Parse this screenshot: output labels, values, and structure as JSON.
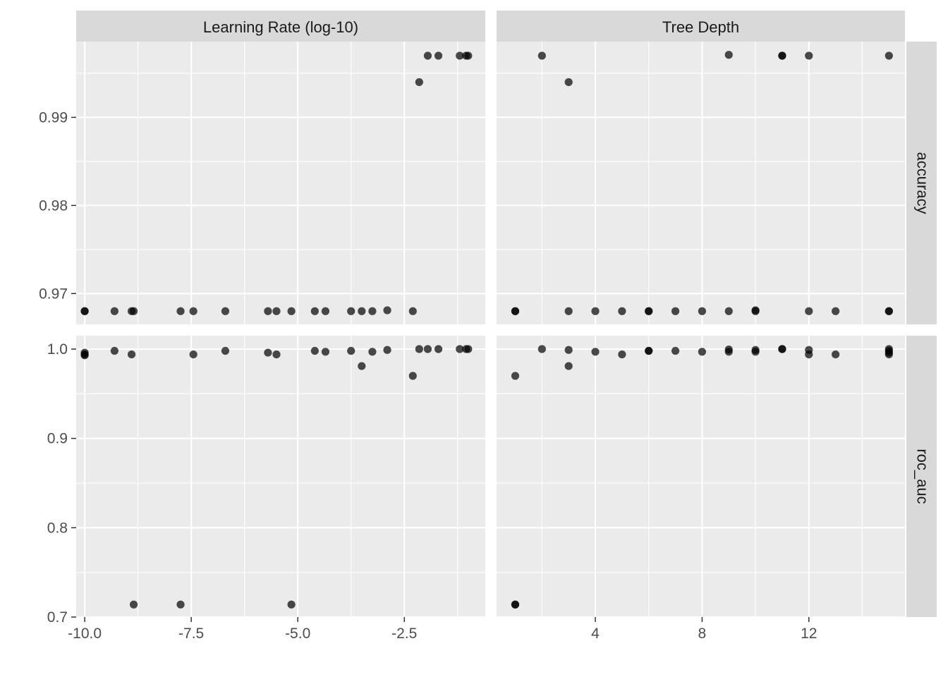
{
  "chart_data": {
    "type": "scatter",
    "facet_columns": [
      "Learning Rate (log-10)",
      "Tree Depth"
    ],
    "facet_rows": [
      "accuracy",
      "roc_auc"
    ],
    "grid": true,
    "x_axes": [
      {
        "range": [
          -10.2,
          -0.6
        ],
        "ticks": [
          -10.0,
          -7.5,
          -5.0,
          -2.5
        ],
        "tick_labels": [
          "-10.0",
          "-7.5",
          "-5.0",
          "-2.5"
        ]
      },
      {
        "range": [
          0.3,
          15.6
        ],
        "ticks": [
          4,
          8,
          12
        ],
        "tick_labels": [
          "4",
          "8",
          "12"
        ]
      }
    ],
    "y_axes": [
      {
        "range": [
          0.9665,
          0.9986
        ],
        "ticks": [
          0.97,
          0.98,
          0.99
        ],
        "tick_labels": [
          "0.97",
          "0.98",
          "0.99"
        ]
      },
      {
        "range": [
          0.7,
          1.015
        ],
        "ticks": [
          0.7,
          0.8,
          0.9,
          1.0
        ],
        "tick_labels": [
          "0.7",
          "0.8",
          "0.9",
          "1.0"
        ]
      }
    ],
    "panels": [
      {
        "col": 0,
        "row": 0,
        "points": [
          {
            "x": -10.0,
            "y": 0.968
          },
          {
            "x": -10.0,
            "y": 0.968
          },
          {
            "x": -9.3,
            "y": 0.968
          },
          {
            "x": -8.9,
            "y": 0.968
          },
          {
            "x": -8.85,
            "y": 0.968
          },
          {
            "x": -7.75,
            "y": 0.968
          },
          {
            "x": -7.45,
            "y": 0.968
          },
          {
            "x": -6.7,
            "y": 0.968
          },
          {
            "x": -5.7,
            "y": 0.968
          },
          {
            "x": -5.5,
            "y": 0.968
          },
          {
            "x": -5.15,
            "y": 0.968
          },
          {
            "x": -4.6,
            "y": 0.968
          },
          {
            "x": -4.35,
            "y": 0.968
          },
          {
            "x": -3.75,
            "y": 0.968
          },
          {
            "x": -3.5,
            "y": 0.968
          },
          {
            "x": -3.25,
            "y": 0.968
          },
          {
            "x": -2.9,
            "y": 0.9681
          },
          {
            "x": -2.3,
            "y": 0.968
          },
          {
            "x": -2.15,
            "y": 0.994
          },
          {
            "x": -1.95,
            "y": 0.997
          },
          {
            "x": -1.7,
            "y": 0.997
          },
          {
            "x": -1.2,
            "y": 0.997
          },
          {
            "x": -1.05,
            "y": 0.997
          },
          {
            "x": -1.0,
            "y": 0.997
          }
        ]
      },
      {
        "col": 1,
        "row": 0,
        "points": [
          {
            "x": 1,
            "y": 0.968
          },
          {
            "x": 1,
            "y": 0.968
          },
          {
            "x": 2,
            "y": 0.997
          },
          {
            "x": 3,
            "y": 0.994
          },
          {
            "x": 3,
            "y": 0.968
          },
          {
            "x": 4,
            "y": 0.968
          },
          {
            "x": 5,
            "y": 0.968
          },
          {
            "x": 6,
            "y": 0.968
          },
          {
            "x": 6,
            "y": 0.968
          },
          {
            "x": 7,
            "y": 0.968
          },
          {
            "x": 8,
            "y": 0.968
          },
          {
            "x": 9,
            "y": 0.968
          },
          {
            "x": 9,
            "y": 0.9971
          },
          {
            "x": 10,
            "y": 0.968
          },
          {
            "x": 10,
            "y": 0.9681
          },
          {
            "x": 11,
            "y": 0.997
          },
          {
            "x": 11,
            "y": 0.997
          },
          {
            "x": 12,
            "y": 0.997
          },
          {
            "x": 12,
            "y": 0.968
          },
          {
            "x": 13,
            "y": 0.968
          },
          {
            "x": 15,
            "y": 0.997
          },
          {
            "x": 15,
            "y": 0.968
          },
          {
            "x": 15,
            "y": 0.968
          }
        ]
      },
      {
        "col": 0,
        "row": 1,
        "points": [
          {
            "x": -10.0,
            "y": 0.996
          },
          {
            "x": -10.0,
            "y": 0.993
          },
          {
            "x": -10.0,
            "y": 0.994
          },
          {
            "x": -9.3,
            "y": 0.998
          },
          {
            "x": -8.9,
            "y": 0.994
          },
          {
            "x": -8.85,
            "y": 0.714
          },
          {
            "x": -7.75,
            "y": 0.714
          },
          {
            "x": -7.45,
            "y": 0.994
          },
          {
            "x": -6.7,
            "y": 0.998
          },
          {
            "x": -5.7,
            "y": 0.996
          },
          {
            "x": -5.5,
            "y": 0.994
          },
          {
            "x": -5.15,
            "y": 0.714
          },
          {
            "x": -4.6,
            "y": 0.998
          },
          {
            "x": -4.35,
            "y": 0.997
          },
          {
            "x": -3.75,
            "y": 0.998
          },
          {
            "x": -3.5,
            "y": 0.981
          },
          {
            "x": -3.25,
            "y": 0.997
          },
          {
            "x": -2.9,
            "y": 0.999
          },
          {
            "x": -2.3,
            "y": 0.97
          },
          {
            "x": -2.15,
            "y": 1.0
          },
          {
            "x": -1.95,
            "y": 1.0
          },
          {
            "x": -1.7,
            "y": 1.0
          },
          {
            "x": -1.2,
            "y": 1.0
          },
          {
            "x": -1.05,
            "y": 1.0
          },
          {
            "x": -1.0,
            "y": 1.0
          }
        ]
      },
      {
        "col": 1,
        "row": 1,
        "points": [
          {
            "x": 1,
            "y": 0.97
          },
          {
            "x": 1,
            "y": 0.714
          },
          {
            "x": 1,
            "y": 0.714
          },
          {
            "x": 2,
            "y": 1.0
          },
          {
            "x": 3,
            "y": 0.999
          },
          {
            "x": 3,
            "y": 0.981
          },
          {
            "x": 4,
            "y": 0.997
          },
          {
            "x": 5,
            "y": 0.994
          },
          {
            "x": 6,
            "y": 0.998
          },
          {
            "x": 6,
            "y": 0.998
          },
          {
            "x": 7,
            "y": 0.998
          },
          {
            "x": 8,
            "y": 0.997
          },
          {
            "x": 9,
            "y": 0.9995
          },
          {
            "x": 9,
            "y": 0.997
          },
          {
            "x": 10,
            "y": 0.999
          },
          {
            "x": 10,
            "y": 0.997
          },
          {
            "x": 11,
            "y": 1.0
          },
          {
            "x": 11,
            "y": 1.0
          },
          {
            "x": 12,
            "y": 0.999
          },
          {
            "x": 12,
            "y": 0.994
          },
          {
            "x": 13,
            "y": 0.994
          },
          {
            "x": 15,
            "y": 1.0
          },
          {
            "x": 15,
            "y": 0.998
          },
          {
            "x": 15,
            "y": 0.996
          },
          {
            "x": 15,
            "y": 0.994
          }
        ]
      }
    ]
  }
}
